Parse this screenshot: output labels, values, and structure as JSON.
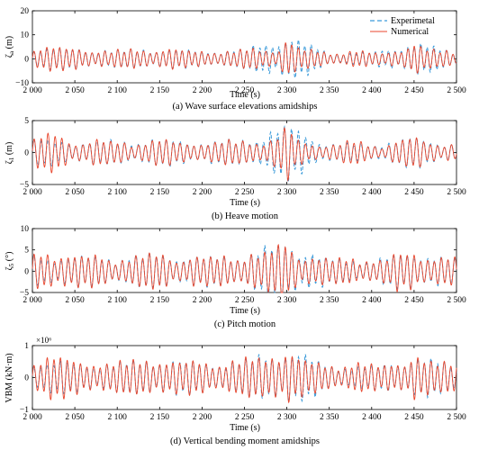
{
  "figure": {
    "legend": [
      {
        "label": "Experimetal",
        "color": "#3a9ad9",
        "dash": true
      },
      {
        "label": "Numerical",
        "color": "#e8452c",
        "dash": false
      }
    ]
  },
  "chart_data": [
    {
      "type": "line",
      "caption": "(a) Wave surface elevations amidships",
      "ylabel": "ζ_a (m)",
      "ylabel_main": "ζ",
      "ylabel_sub": "a",
      "ylabel_unit": " (m)",
      "xlabel": "Time (s)",
      "xlim": [
        2000,
        2500
      ],
      "ylim": [
        -10,
        20
      ],
      "yticks": [
        -10,
        0,
        10,
        20
      ],
      "xticks": [
        2000,
        2050,
        2100,
        2150,
        2200,
        2250,
        2300,
        2350,
        2400,
        2450,
        2500
      ],
      "xtick_labels": [
        "2 000",
        "2 050",
        "2 100",
        "2 150",
        "2 200",
        "2 250",
        "2 300",
        "2 350",
        "2 400",
        "2 450",
        "2 500"
      ],
      "legend": "top-right",
      "series": [
        {
          "name": "Numerical",
          "color": "#e8452c",
          "x": [
            2000,
            2010,
            2020,
            2030,
            2040,
            2050,
            2060,
            2070,
            2080,
            2090,
            2100,
            2110,
            2120,
            2130,
            2140,
            2150,
            2160,
            2170,
            2180,
            2190,
            2200,
            2210,
            2220,
            2230,
            2240,
            2250,
            2260,
            2270,
            2280,
            2290,
            2300,
            2310,
            2320,
            2330,
            2340,
            2350,
            2360,
            2370,
            2380,
            2390,
            2400,
            2410,
            2420,
            2430,
            2440,
            2450,
            2460,
            2470,
            2480,
            2490,
            2500
          ],
          "y": [
            4.5,
            5.2,
            5.0,
            4.6,
            4.0,
            4.2,
            4.0,
            3.8,
            4.2,
            3.0,
            3.5,
            3.2,
            4.0,
            3.5,
            3.8,
            4.3,
            4.5,
            3.8,
            3.2,
            3.0,
            3.2,
            3.0,
            3.5,
            3.3,
            3.2,
            3.8,
            4.0,
            3.5,
            3.6,
            4.5,
            9.8,
            5.0,
            3.6,
            3.5,
            3.0,
            2.5,
            2.8,
            3.2,
            3.5,
            3.0,
            2.5,
            2.2,
            2.8,
            4.5,
            4.6,
            7.0,
            4.2,
            3.6,
            3.2,
            3.5,
            2.8
          ],
          "amp_scale": 1.0,
          "fill_period": 7.6
        },
        {
          "name": "Experimetal",
          "color": "#3a9ad9",
          "x": [
            2000,
            2050,
            2100,
            2150,
            2200,
            2250,
            2300,
            2350,
            2400,
            2450,
            2500
          ],
          "y": [
            4.5,
            4.2,
            3.5,
            4.3,
            3.2,
            3.8,
            9.5,
            2.5,
            2.5,
            6.8,
            2.8
          ],
          "amp_scale": 1.0,
          "fill_period": 7.6
        }
      ]
    },
    {
      "type": "line",
      "caption": "(b) Heave motion",
      "ylabel": "ζ_1 (m)",
      "ylabel_main": "ζ",
      "ylabel_sub": "1",
      "ylabel_unit": " (m)",
      "xlabel": "Time (s)",
      "xlim": [
        2000,
        2500
      ],
      "ylim": [
        -5,
        5
      ],
      "yticks": [
        -5,
        0,
        5
      ],
      "xticks": [
        2000,
        2050,
        2100,
        2150,
        2200,
        2250,
        2300,
        2350,
        2400,
        2450,
        2500
      ],
      "xtick_labels": [
        "2 000",
        "2 050",
        "2 100",
        "2 150",
        "2 200",
        "2 250",
        "2 300",
        "2 350",
        "2 400",
        "2 450",
        "2 500"
      ],
      "series": [
        {
          "name": "Numerical",
          "color": "#e8452c",
          "x": [
            2000,
            2010,
            2020,
            2030,
            2040,
            2050,
            2060,
            2070,
            2080,
            2090,
            2100,
            2110,
            2120,
            2130,
            2140,
            2150,
            2160,
            2170,
            2180,
            2190,
            2200,
            2210,
            2220,
            2230,
            2240,
            2250,
            2260,
            2270,
            2280,
            2290,
            2300,
            2310,
            2320,
            2330,
            2340,
            2350,
            2360,
            2370,
            2380,
            2390,
            2400,
            2410,
            2420,
            2430,
            2440,
            2450,
            2460,
            2470,
            2480,
            2490,
            2500
          ],
          "y": [
            1.8,
            2.5,
            2.8,
            3.0,
            2.2,
            1.8,
            1.5,
            1.8,
            2.0,
            1.5,
            1.8,
            1.6,
            1.5,
            1.7,
            1.8,
            2.0,
            1.8,
            1.6,
            1.5,
            1.7,
            1.6,
            1.5,
            1.6,
            1.8,
            1.7,
            1.8,
            2.0,
            1.7,
            1.9,
            2.5,
            4.0,
            2.2,
            1.6,
            1.5,
            1.4,
            1.2,
            1.3,
            1.6,
            1.8,
            1.5,
            1.2,
            1.1,
            1.3,
            2.0,
            1.8,
            2.5,
            1.8,
            1.6,
            1.5,
            1.6,
            1.2
          ],
          "amp_scale": 1.0,
          "fill_period": 8.2
        },
        {
          "name": "Experimetal",
          "color": "#3a9ad9",
          "x": [
            2000,
            2050,
            2100,
            2150,
            2200,
            2250,
            2300,
            2350,
            2400,
            2450,
            2500
          ],
          "y": [
            2.0,
            1.7,
            1.8,
            2.0,
            1.7,
            1.9,
            4.2,
            1.4,
            1.3,
            2.3,
            1.3
          ],
          "amp_scale": 1.0,
          "fill_period": 8.2
        }
      ]
    },
    {
      "type": "line",
      "caption": "(c) Pitch motion",
      "ylabel": "ζ_5 (°)",
      "ylabel_main": "ζ",
      "ylabel_sub": "5",
      "ylabel_unit": " (°)",
      "xlabel": "Time (s)",
      "xlim": [
        2000,
        2500
      ],
      "ylim": [
        -5,
        10
      ],
      "yticks": [
        -5,
        0,
        5,
        10
      ],
      "xticks": [
        2000,
        2050,
        2100,
        2150,
        2200,
        2250,
        2300,
        2350,
        2400,
        2450,
        2500
      ],
      "xtick_labels": [
        "2 000",
        "2 050",
        "2 100",
        "2 150",
        "2 200",
        "2 250",
        "2 300",
        "2 350",
        "2 400",
        "2 450",
        "2 500"
      ],
      "series": [
        {
          "name": "Numerical",
          "color": "#e8452c",
          "x": [
            2000,
            2010,
            2020,
            2030,
            2040,
            2050,
            2060,
            2070,
            2080,
            2090,
            2100,
            2110,
            2120,
            2130,
            2140,
            2150,
            2160,
            2170,
            2180,
            2190,
            2200,
            2210,
            2220,
            2230,
            2240,
            2250,
            2260,
            2270,
            2280,
            2290,
            2300,
            2310,
            2320,
            2330,
            2340,
            2350,
            2360,
            2370,
            2380,
            2390,
            2400,
            2410,
            2420,
            2430,
            2440,
            2450,
            2460,
            2470,
            2480,
            2490,
            2500
          ],
          "y": [
            3.5,
            4.5,
            5.0,
            4.2,
            3.8,
            3.5,
            3.2,
            3.5,
            3.8,
            3.0,
            3.2,
            3.0,
            3.3,
            3.6,
            3.8,
            4.2,
            3.8,
            3.2,
            3.0,
            3.4,
            3.2,
            3.0,
            3.4,
            3.8,
            3.6,
            3.8,
            4.2,
            3.6,
            4.5,
            6.0,
            7.2,
            5.0,
            3.6,
            3.2,
            3.0,
            2.6,
            2.8,
            3.2,
            3.4,
            3.0,
            2.6,
            2.4,
            2.8,
            4.2,
            4.0,
            5.0,
            3.8,
            3.2,
            3.0,
            3.2,
            2.8
          ],
          "amp_scale": 1.0,
          "fill_period": 8.0
        },
        {
          "name": "Experimetal",
          "color": "#3a9ad9",
          "x": [
            2000,
            2050,
            2100,
            2150,
            2200,
            2250,
            2300,
            2350,
            2400,
            2450,
            2500
          ],
          "y": [
            3.6,
            3.4,
            3.2,
            4.0,
            3.2,
            3.8,
            6.8,
            2.8,
            2.5,
            4.6,
            2.6
          ],
          "amp_scale": 1.0,
          "fill_period": 8.0
        }
      ]
    },
    {
      "type": "line",
      "caption": "(d) Vertical bending moment amidships",
      "ylabel": "VBM (kN·m)",
      "ylabel_main": "VBM (kN·m)",
      "ylabel_sub": "",
      "ylabel_unit": "",
      "y_multiplier": "×10⁶",
      "xlabel": "Time (s)",
      "xlim": [
        2000,
        2500
      ],
      "ylim": [
        -1,
        1
      ],
      "yticks": [
        -1,
        0,
        1
      ],
      "xticks": [
        2000,
        2050,
        2100,
        2150,
        2200,
        2250,
        2300,
        2350,
        2400,
        2450,
        2500
      ],
      "xtick_labels": [
        "2 000",
        "2 050",
        "2 100",
        "2 150",
        "2 200",
        "2 250",
        "2 300",
        "2 350",
        "2 400",
        "2 450",
        "2 500"
      ],
      "series": [
        {
          "name": "Numerical",
          "color": "#e8452c",
          "x": [
            2000,
            2010,
            2020,
            2030,
            2040,
            2050,
            2060,
            2070,
            2080,
            2090,
            2100,
            2110,
            2120,
            2130,
            2140,
            2150,
            2160,
            2170,
            2180,
            2190,
            2200,
            2210,
            2220,
            2230,
            2240,
            2250,
            2260,
            2270,
            2280,
            2290,
            2300,
            2310,
            2320,
            2330,
            2340,
            2350,
            2360,
            2370,
            2380,
            2390,
            2400,
            2410,
            2420,
            2430,
            2440,
            2450,
            2460,
            2470,
            2480,
            2490,
            2500
          ],
          "y": [
            0.55,
            0.65,
            0.7,
            0.62,
            0.55,
            0.5,
            0.45,
            0.5,
            0.55,
            0.45,
            0.48,
            0.45,
            0.5,
            0.55,
            0.58,
            0.62,
            0.55,
            0.48,
            0.45,
            0.5,
            0.48,
            0.45,
            0.5,
            0.55,
            0.52,
            0.55,
            0.6,
            0.55,
            0.7,
            0.85,
            0.95,
            0.7,
            0.5,
            0.45,
            0.42,
            0.38,
            0.4,
            0.45,
            0.48,
            0.42,
            0.38,
            0.35,
            0.4,
            0.55,
            0.55,
            0.75,
            0.55,
            0.45,
            0.42,
            0.5,
            0.55
          ],
          "amp_scale": 1.0,
          "fill_period": 7.8
        },
        {
          "name": "Experimetal",
          "color": "#3a9ad9",
          "x": [
            2000,
            2050,
            2100,
            2150,
            2200,
            2250,
            2300,
            2350,
            2400,
            2450,
            2500
          ],
          "y": [
            0.5,
            0.45,
            0.45,
            0.58,
            0.45,
            0.52,
            0.9,
            0.36,
            0.34,
            0.62,
            0.42
          ],
          "amp_scale": 1.0,
          "fill_period": 7.8
        }
      ]
    }
  ]
}
